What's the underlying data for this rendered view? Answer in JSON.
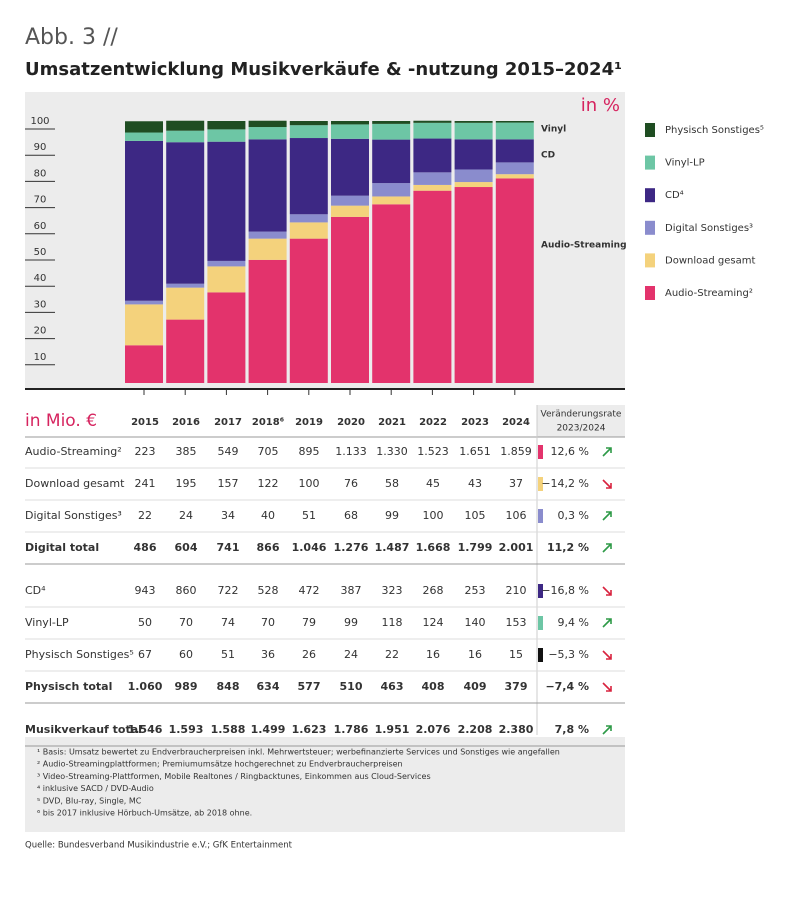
{
  "header": {
    "kicker": "Abb. 3 //",
    "title": "Umsatzentwicklung Musikverkäufe & -nutzung 2015–2024¹"
  },
  "chart_data": {
    "type": "stacked_bar",
    "unit_label": "in %",
    "categories": [
      "2015",
      "2016",
      "2017",
      "2018⁶",
      "2019",
      "2020",
      "2021",
      "2022",
      "2023",
      "2024"
    ],
    "ylim": [
      0,
      100
    ],
    "yticks": [
      10,
      20,
      30,
      40,
      50,
      60,
      70,
      80,
      90,
      100
    ],
    "series": [
      {
        "name": "Audio-Streaming²",
        "color": "#e3336c",
        "values": [
          14.4,
          24.2,
          34.6,
          47.0,
          55.1,
          63.4,
          68.2,
          73.4,
          74.8,
          78.1
        ]
      },
      {
        "name": "Download gesamt",
        "color": "#f4d27c",
        "values": [
          15.6,
          12.2,
          9.9,
          8.1,
          6.2,
          4.3,
          3.0,
          2.2,
          1.9,
          1.6
        ]
      },
      {
        "name": "Digital Sonstiges³",
        "color": "#8a8ccd",
        "values": [
          1.4,
          1.5,
          2.1,
          2.7,
          3.1,
          3.8,
          5.1,
          4.8,
          4.8,
          4.5
        ]
      },
      {
        "name": "CD⁴",
        "color": "#3d2884",
        "values": [
          61.0,
          54.0,
          45.5,
          35.2,
          29.1,
          21.7,
          16.6,
          12.9,
          11.5,
          8.8
        ]
      },
      {
        "name": "Vinyl-LP",
        "color": "#6dc6a5",
        "values": [
          3.2,
          4.4,
          4.7,
          4.7,
          4.9,
          5.5,
          6.0,
          6.0,
          6.3,
          6.4
        ]
      },
      {
        "name": "Physisch Sonstiges⁵",
        "color": "#1f4d22",
        "values": [
          4.3,
          3.8,
          3.2,
          2.4,
          1.6,
          1.3,
          1.1,
          0.8,
          0.7,
          0.6
        ]
      }
    ],
    "annotations": [
      "Vinyl",
      "CD",
      "Audio-Streaming"
    ]
  },
  "table": {
    "unit": "in Mio. €",
    "change_header": [
      "Veränderungsrate",
      "2023/2024"
    ],
    "groups": [
      [
        {
          "label": "Audio-Streaming²",
          "values": [
            "223",
            "385",
            "549",
            "705",
            "895",
            "1.133",
            "1.330",
            "1.523",
            "1.651",
            "1.859"
          ],
          "change": "12,6 %",
          "color": "#e3336c",
          "trend": "up",
          "bold": false
        },
        {
          "label": "Download gesamt",
          "values": [
            "241",
            "195",
            "157",
            "122",
            "100",
            "76",
            "58",
            "45",
            "43",
            "37"
          ],
          "change": "−14,2 %",
          "color": "#f4d27c",
          "trend": "down",
          "bold": false
        },
        {
          "label": "Digital Sonstiges³",
          "values": [
            "22",
            "24",
            "34",
            "40",
            "51",
            "68",
            "99",
            "100",
            "105",
            "106"
          ],
          "change": "0,3 %",
          "color": "#8a8ccd",
          "trend": "up",
          "bold": false
        },
        {
          "label": "Digital total",
          "values": [
            "486",
            "604",
            "741",
            "866",
            "1.046",
            "1.276",
            "1.487",
            "1.668",
            "1.799",
            "2.001"
          ],
          "change": "11,2 %",
          "color": null,
          "trend": "up",
          "bold": true
        }
      ],
      [
        {
          "label": "CD⁴",
          "values": [
            "943",
            "860",
            "722",
            "528",
            "472",
            "387",
            "323",
            "268",
            "253",
            "210"
          ],
          "change": "−16,8 %",
          "color": "#3d2884",
          "trend": "down",
          "bold": false
        },
        {
          "label": "Vinyl-LP",
          "values": [
            "50",
            "70",
            "74",
            "70",
            "79",
            "99",
            "118",
            "124",
            "140",
            "153"
          ],
          "change": "9,4 %",
          "color": "#6dc6a5",
          "trend": "up",
          "bold": false
        },
        {
          "label": "Physisch Sonstiges⁵",
          "values": [
            "67",
            "60",
            "51",
            "36",
            "26",
            "24",
            "22",
            "16",
            "16",
            "15"
          ],
          "change": "−5,3 %",
          "color": "#111111",
          "trend": "down",
          "bold": false
        },
        {
          "label": "Physisch total",
          "values": [
            "1.060",
            "989",
            "848",
            "634",
            "577",
            "510",
            "463",
            "408",
            "409",
            "379"
          ],
          "change": "−7,4 %",
          "color": null,
          "trend": "down",
          "bold": true
        }
      ],
      [
        {
          "label": "Musikverkauf total",
          "values": [
            "1.546",
            "1.593",
            "1.588",
            "1.499",
            "1.623",
            "1.786",
            "1.951",
            "2.076",
            "2.208",
            "2.380"
          ],
          "change": "7,8 %",
          "color": null,
          "trend": "up",
          "bold": true
        }
      ]
    ]
  },
  "footnotes": [
    "¹ Basis: Umsatz bewertet zu Endverbraucherpreisen inkl. Mehrwertsteuer; werbefinanzierte Services und Sonstiges wie angefallen",
    "² Audio-Streamingplattformen; Premiumumsätze hochgerechnet zu Endverbraucherpreisen",
    "³ Video-Streaming-Plattformen, Mobile Realtones / Ringbacktunes, Einkommen aus Cloud-Services",
    "⁴ inklusive SACD / DVD-Audio",
    "⁵ DVD, Blu-ray, Single, MC",
    "⁶ bis 2017 inklusive Hörbuch-Umsätze, ab 2018 ohne."
  ],
  "source": "Quelle: Bundesverband Musikindustrie e.V.; GfK Entertainment"
}
